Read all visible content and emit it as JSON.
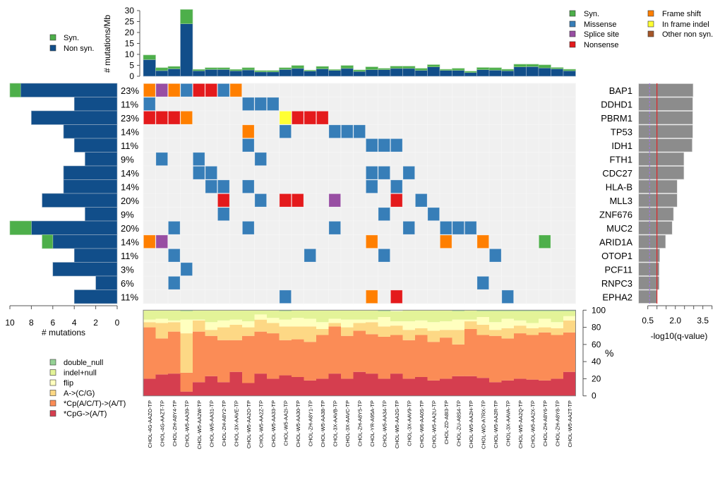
{
  "colors": {
    "syn": "#4daf4a",
    "non_syn": "#114e8a",
    "missense": "#377eb8",
    "splice_site": "#984ea3",
    "nonsense": "#e41a1c",
    "frame_shift": "#ff7f00",
    "in_frame_indel": "#ffff33",
    "other_non_syn": "#a65628",
    "empty_cell": "#f0f0f0",
    "qvalue_bar": "#8c8c8c",
    "qvalue_threshold": "#e41a1c",
    "qvalue_dashed": "#9e78d6",
    "double_null": "#95d195",
    "indel_null": "#e3f398",
    "flip": "#ffffbf",
    "a_to_cg": "#fdd885",
    "cp_act": "#fb8c56",
    "cpg": "#d53e4f"
  },
  "chart_data": [
    {
      "id": "mutation_rate",
      "type": "bar",
      "stacked": true,
      "title": "",
      "ylabel": "# mutations/Mb",
      "ylim": [
        0,
        30
      ],
      "yticks": [
        0,
        5,
        10,
        15,
        20,
        25,
        30
      ],
      "legend": {
        "placement": "top-left",
        "entries": [
          "Syn.",
          "Non syn."
        ]
      },
      "series": [
        {
          "name": "Non syn.",
          "color_key": "non_syn",
          "values": [
            7.6,
            2.6,
            3.4,
            24.0,
            2.5,
            3.1,
            3.1,
            2.5,
            2.9,
            2.0,
            2.0,
            3.1,
            3.6,
            2.4,
            3.4,
            2.7,
            3.6,
            2.2,
            3.0,
            3.0,
            3.6,
            3.6,
            2.7,
            4.3,
            2.7,
            2.7,
            1.7,
            3.0,
            2.8,
            2.5,
            4.3,
            4.4,
            3.8,
            3.4,
            2.5
          ]
        },
        {
          "name": "Syn.",
          "color_key": "syn",
          "values": [
            2.1,
            1.3,
            1.1,
            6.5,
            0.6,
            0.8,
            0.8,
            0.6,
            1.0,
            0.6,
            0.6,
            0.8,
            1.3,
            0.4,
            1.1,
            0.4,
            1.3,
            0.7,
            1.3,
            0.6,
            1.0,
            1.0,
            0.9,
            1.0,
            0.5,
            0.9,
            0.6,
            1.0,
            1.1,
            0.7,
            1.2,
            1.1,
            1.4,
            0.6,
            0.7
          ]
        }
      ]
    },
    {
      "id": "oncoprint",
      "type": "heatmap",
      "samples": [
        "CHOL-4G-AAZO-TP",
        "CHOL-4G-AAZT-TP",
        "CHOL-ZH-A8Y4-TP",
        "CHOL-W5-AA39-TP",
        "CHOL-W5-AA2W-TP",
        "CHOL-W5-AA31-TP",
        "CHOL-ZH-A8Y2-TP",
        "CHOL-3X-AAVE-TP",
        "CHOL-W5-AA2O-TP",
        "CHOL-W5-AA2Z-TP",
        "CHOL-W5-AA33-TP",
        "CHOL-W5-AA2I-TP",
        "CHOL-W5-AA30-TP",
        "CHOL-ZH-A8Y1-TP",
        "CHOL-W5-AA38-TP",
        "CHOL-3X-AAVB-TP",
        "CHOL-3X-AAVC-TP",
        "CHOL-ZH-A8Y5-TP",
        "CHOL-YR-A95A-TP",
        "CHOL-W5-AA34-TP",
        "CHOL-W5-AA2G-TP",
        "CHOL-3X-AAV9-TP",
        "CHOL-W6-AA0S-TP",
        "CHOL-W5-AA2U-TP",
        "CHOL-ZD-A8I3-TP",
        "CHOL-ZU-A8S4-TP",
        "CHOL-W5-AA2H-TP",
        "CHOL-WD-A7RX-TP",
        "CHOL-W5-AA2R-TP",
        "CHOL-3X-AAVA-TP",
        "CHOL-W5-AA2Q-TP",
        "CHOL-W5-AA2X-TP",
        "CHOL-ZH-A8Y6-TP",
        "CHOL-ZH-A8Y8-TP",
        "CHOL-W5-AA2T-TP"
      ],
      "legend": {
        "placement": "top-right",
        "entries": [
          {
            "label": "Syn.",
            "color_key": "syn"
          },
          {
            "label": "Missense",
            "color_key": "missense"
          },
          {
            "label": "Splice site",
            "color_key": "splice_site"
          },
          {
            "label": "Nonsense",
            "color_key": "nonsense"
          },
          {
            "label": "Frame shift",
            "color_key": "frame_shift"
          },
          {
            "label": "In frame indel",
            "color_key": "in_frame_indel"
          },
          {
            "label": "Other non syn.",
            "color_key": "other_non_syn"
          }
        ]
      },
      "genes": [
        {
          "name": "BAP1",
          "pct": "23%",
          "nonsyn_count": 9,
          "syn_count": 1,
          "neg_log10_q": 2.97,
          "cells": [
            [
              0,
              "frame_shift"
            ],
            [
              1,
              "splice_site"
            ],
            [
              2,
              "frame_shift"
            ],
            [
              3,
              "missense"
            ],
            [
              4,
              "nonsense"
            ],
            [
              5,
              "nonsense"
            ],
            [
              6,
              "missense"
            ],
            [
              7,
              "frame_shift"
            ]
          ]
        },
        {
          "name": "DDHD1",
          "pct": "11%",
          "nonsyn_count": 4,
          "syn_count": 0,
          "neg_log10_q": 2.95,
          "cells": [
            [
              0,
              "missense"
            ],
            [
              8,
              "missense"
            ],
            [
              9,
              "missense"
            ],
            [
              10,
              "missense"
            ]
          ]
        },
        {
          "name": "PBRM1",
          "pct": "23%",
          "nonsyn_count": 8,
          "syn_count": 0,
          "neg_log10_q": 2.95,
          "cells": [
            [
              0,
              "nonsense"
            ],
            [
              1,
              "nonsense"
            ],
            [
              2,
              "nonsense"
            ],
            [
              3,
              "frame_shift"
            ],
            [
              11,
              "in_frame_indel"
            ],
            [
              12,
              "nonsense"
            ],
            [
              13,
              "nonsense"
            ],
            [
              14,
              "nonsense"
            ]
          ]
        },
        {
          "name": "TP53",
          "pct": "14%",
          "nonsyn_count": 5,
          "syn_count": 0,
          "neg_log10_q": 2.95,
          "cells": [
            [
              8,
              "frame_shift"
            ],
            [
              11,
              "missense"
            ],
            [
              15,
              "missense"
            ],
            [
              16,
              "missense"
            ],
            [
              17,
              "missense"
            ]
          ]
        },
        {
          "name": "IDH1",
          "pct": "11%",
          "nonsyn_count": 4,
          "syn_count": 0,
          "neg_log10_q": 2.92,
          "cells": [
            [
              8,
              "missense"
            ],
            [
              18,
              "missense"
            ],
            [
              19,
              "missense"
            ],
            [
              20,
              "missense"
            ]
          ]
        },
        {
          "name": "FTH1",
          "pct": "9%",
          "nonsyn_count": 3,
          "syn_count": 0,
          "neg_log10_q": 2.47,
          "cells": [
            [
              1,
              "missense"
            ],
            [
              4,
              "missense"
            ],
            [
              9,
              "missense"
            ]
          ]
        },
        {
          "name": "CDC27",
          "pct": "14%",
          "nonsyn_count": 5,
          "syn_count": 0,
          "neg_log10_q": 2.47,
          "cells": [
            [
              4,
              "missense"
            ],
            [
              5,
              "missense"
            ],
            [
              18,
              "missense"
            ],
            [
              19,
              "missense"
            ],
            [
              21,
              "missense"
            ]
          ]
        },
        {
          "name": "HLA-B",
          "pct": "14%",
          "nonsyn_count": 5,
          "syn_count": 0,
          "neg_log10_q": 2.1,
          "cells": [
            [
              5,
              "missense"
            ],
            [
              6,
              "missense"
            ],
            [
              8,
              "missense"
            ],
            [
              18,
              "missense"
            ],
            [
              20,
              "missense"
            ]
          ]
        },
        {
          "name": "MLL3",
          "pct": "20%",
          "nonsyn_count": 7,
          "syn_count": 0,
          "neg_log10_q": 2.1,
          "cells": [
            [
              6,
              "nonsense"
            ],
            [
              9,
              "missense"
            ],
            [
              11,
              "nonsense"
            ],
            [
              12,
              "nonsense"
            ],
            [
              15,
              "splice_site"
            ],
            [
              20,
              "nonsense"
            ],
            [
              22,
              "missense"
            ]
          ]
        },
        {
          "name": "ZNF676",
          "pct": "9%",
          "nonsyn_count": 3,
          "syn_count": 0,
          "neg_log10_q": 1.9,
          "cells": [
            [
              6,
              "missense"
            ],
            [
              19,
              "missense"
            ],
            [
              23,
              "missense"
            ]
          ]
        },
        {
          "name": "MUC2",
          "pct": "20%",
          "nonsyn_count": 8,
          "syn_count": 2,
          "neg_log10_q": 1.83,
          "cells": [
            [
              2,
              "missense"
            ],
            [
              8,
              "missense"
            ],
            [
              15,
              "missense"
            ],
            [
              21,
              "missense"
            ],
            [
              24,
              "missense"
            ],
            [
              25,
              "missense"
            ],
            [
              26,
              "missense"
            ]
          ]
        },
        {
          "name": "ARID1A",
          "pct": "14%",
          "nonsyn_count": 6,
          "syn_count": 1,
          "neg_log10_q": 1.47,
          "cells": [
            [
              0,
              "frame_shift"
            ],
            [
              1,
              "splice_site"
            ],
            [
              18,
              "frame_shift"
            ],
            [
              24,
              "frame_shift"
            ],
            [
              27,
              "frame_shift"
            ],
            [
              32,
              "syn"
            ]
          ]
        },
        {
          "name": "OTOP1",
          "pct": "11%",
          "nonsyn_count": 4,
          "syn_count": 0,
          "neg_log10_q": 1.15,
          "cells": [
            [
              2,
              "missense"
            ],
            [
              13,
              "missense"
            ],
            [
              19,
              "missense"
            ],
            [
              28,
              "missense"
            ]
          ]
        },
        {
          "name": "PCF11",
          "pct": "3%",
          "nonsyn_count": 6,
          "syn_count": 0,
          "neg_log10_q": 1.12,
          "cells": [
            [
              3,
              "missense"
            ]
          ]
        },
        {
          "name": "RNPC3",
          "pct": "6%",
          "nonsyn_count": 2,
          "syn_count": 0,
          "neg_log10_q": 1.12,
          "cells": [
            [
              2,
              "missense"
            ],
            [
              27,
              "missense"
            ]
          ]
        },
        {
          "name": "EPHA2",
          "pct": "11%",
          "nonsyn_count": 4,
          "syn_count": 0,
          "neg_log10_q": 1.0,
          "cells": [
            [
              11,
              "missense"
            ],
            [
              18,
              "frame_shift"
            ],
            [
              20,
              "nonsense"
            ],
            [
              29,
              "missense"
            ]
          ]
        }
      ]
    },
    {
      "id": "gene_mutation_counts",
      "type": "bar",
      "orientation": "horizontal-reversed",
      "xlabel": "# mutations",
      "xlim": [
        0,
        10
      ],
      "xticks": [
        10,
        8,
        6,
        4,
        2,
        0
      ]
    },
    {
      "id": "qvalues",
      "type": "bar",
      "orientation": "horizontal",
      "xlabel": "-log10(q-value)",
      "xlim": [
        0,
        4
      ],
      "xtick_values": [
        0.5,
        1.0,
        1.5,
        2.0,
        2.5,
        3.0,
        3.5,
        4.0
      ],
      "xtick_labels": [
        "0.5",
        "2.0",
        "3.5"
      ],
      "xtick_label_values": [
        0.5,
        2.0,
        3.5
      ],
      "threshold_line": 1.0,
      "dashed_line": 0.6
    },
    {
      "id": "mutation_spectrum",
      "type": "bar",
      "stacked": true,
      "ylabel": "%",
      "ylim": [
        0,
        100
      ],
      "yticks": [
        0,
        20,
        40,
        60,
        80,
        100
      ],
      "legend": {
        "placement": "bottom-left",
        "entries": [
          {
            "label": "double_null",
            "color_key": "double_null"
          },
          {
            "label": "indel+null",
            "color_key": "indel_null"
          },
          {
            "label": "flip",
            "color_key": "flip"
          },
          {
            "label": "A->(C/G)",
            "color_key": "a_to_cg"
          },
          {
            "label": "*Cp(A/C/T)->(A/T)",
            "color_key": "cp_act"
          },
          {
            "label": "*CpG->(A/T)",
            "color_key": "cpg"
          }
        ]
      },
      "series": [
        {
          "name": "*CpG->(A/T)",
          "color_key": "cpg",
          "values": [
            20,
            25,
            26,
            5,
            16,
            23,
            16,
            28,
            15,
            26,
            20,
            24,
            22,
            18,
            20,
            26,
            20,
            28,
            26,
            20,
            26,
            20,
            22,
            18,
            20,
            23,
            23,
            21,
            16,
            18,
            20,
            19,
            18,
            20,
            28
          ]
        },
        {
          "name": "*Cp(A/C/T)->(A/T)",
          "color_key": "cp_act",
          "values": [
            60,
            42,
            49,
            22,
            59,
            47,
            49,
            37,
            55,
            49,
            53,
            41,
            44,
            45,
            51,
            55,
            50,
            48,
            46,
            49,
            45,
            45,
            49,
            45,
            48,
            37,
            55,
            50,
            54,
            49,
            53,
            52,
            56,
            51,
            46
          ]
        },
        {
          "name": "A->(C/G)",
          "color_key": "a_to_cg",
          "values": [
            6,
            18,
            11,
            46,
            13,
            7,
            15,
            18,
            10,
            14,
            12,
            16,
            15,
            18,
            7,
            4,
            10,
            9,
            14,
            12,
            11,
            12,
            8,
            13,
            9,
            17,
            9,
            12,
            7,
            12,
            9,
            8,
            6,
            8,
            14
          ]
        },
        {
          "name": "flip",
          "color_key": "flip",
          "values": [
            3,
            5,
            2,
            16,
            1,
            9,
            8,
            6,
            7,
            6,
            6,
            8,
            10,
            9,
            8,
            5,
            9,
            4,
            3,
            11,
            5,
            10,
            9,
            10,
            10,
            12,
            2,
            9,
            9,
            11,
            6,
            6,
            10,
            7,
            5
          ]
        },
        {
          "name": "indel+null",
          "color_key": "indel_null",
          "values": [
            11,
            10,
            12,
            10,
            11,
            14,
            12,
            11,
            13,
            5,
            9,
            10,
            9,
            10,
            14,
            10,
            11,
            11,
            11,
            7,
            12,
            13,
            12,
            14,
            13,
            10,
            11,
            7,
            13,
            9,
            11,
            14,
            9,
            13,
            6
          ]
        },
        {
          "name": "double_null",
          "color_key": "double_null",
          "values": [
            0,
            0,
            0,
            1,
            0,
            0,
            0,
            0,
            0,
            0,
            0,
            1,
            0,
            0,
            0,
            0,
            0,
            0,
            0,
            1,
            0,
            0,
            0,
            0,
            0,
            1,
            0,
            1,
            1,
            1,
            1,
            1,
            1,
            1,
            1
          ]
        }
      ]
    }
  ]
}
